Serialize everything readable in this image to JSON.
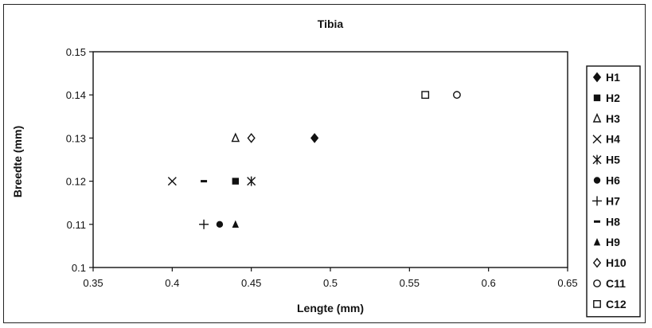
{
  "chart_data": {
    "type": "scatter",
    "title": "Tibia",
    "xlabel": "Lengte (mm)",
    "ylabel": "Breedte (mm)",
    "xlim": [
      0.35,
      0.65
    ],
    "ylim": [
      0.1,
      0.15
    ],
    "x_ticks": [
      "0.35",
      "0.4",
      "0.45",
      "0.5",
      "0.55",
      "0.6",
      "0.65"
    ],
    "y_ticks": [
      "0.1",
      "0.11",
      "0.12",
      "0.13",
      "0.14",
      "0.15"
    ],
    "grid": false,
    "legend_position": "right",
    "series": [
      {
        "name": "H1",
        "marker": "diamond-filled",
        "points": [
          [
            0.49,
            0.13
          ]
        ]
      },
      {
        "name": "H2",
        "marker": "square-filled",
        "points": [
          [
            0.44,
            0.12
          ]
        ]
      },
      {
        "name": "H3",
        "marker": "triangle-open",
        "points": [
          [
            0.44,
            0.13
          ]
        ]
      },
      {
        "name": "H4",
        "marker": "x",
        "points": [
          [
            0.4,
            0.12
          ]
        ]
      },
      {
        "name": "H5",
        "marker": "asterisk",
        "points": [
          [
            0.45,
            0.12
          ]
        ]
      },
      {
        "name": "H6",
        "marker": "circle-filled",
        "points": [
          [
            0.43,
            0.11
          ]
        ]
      },
      {
        "name": "H7",
        "marker": "plus",
        "points": [
          [
            0.42,
            0.11
          ]
        ]
      },
      {
        "name": "H8",
        "marker": "dash",
        "points": [
          [
            0.42,
            0.12
          ]
        ]
      },
      {
        "name": "H9",
        "marker": "triangle-filled",
        "points": [
          [
            0.44,
            0.11
          ]
        ]
      },
      {
        "name": "H10",
        "marker": "diamond-open",
        "points": [
          [
            0.45,
            0.13
          ]
        ]
      },
      {
        "name": "C11",
        "marker": "circle-open",
        "points": [
          [
            0.58,
            0.14
          ]
        ]
      },
      {
        "name": "C12",
        "marker": "square-open",
        "points": [
          [
            0.56,
            0.14
          ]
        ]
      }
    ]
  }
}
